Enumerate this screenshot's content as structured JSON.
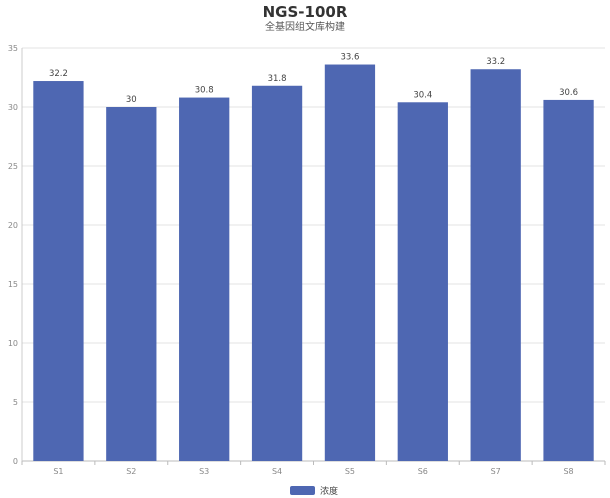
{
  "chart_data": {
    "type": "bar",
    "title": "NGS-100R",
    "subtitle": "全基因组文库构建",
    "categories": [
      "S1",
      "S2",
      "S3",
      "S4",
      "S5",
      "S6",
      "S7",
      "S8"
    ],
    "series": [
      {
        "name": "浓度",
        "values": [
          32.2,
          30,
          30.8,
          31.8,
          33.6,
          30.4,
          33.2,
          30.6
        ],
        "color": "#4E67B2"
      }
    ],
    "ylim": [
      0,
      35
    ],
    "yticks": [
      0,
      5,
      10,
      15,
      20,
      25,
      30,
      35
    ],
    "grid": true,
    "legend_position": "bottom-center",
    "xlabel": "",
    "ylabel": ""
  }
}
